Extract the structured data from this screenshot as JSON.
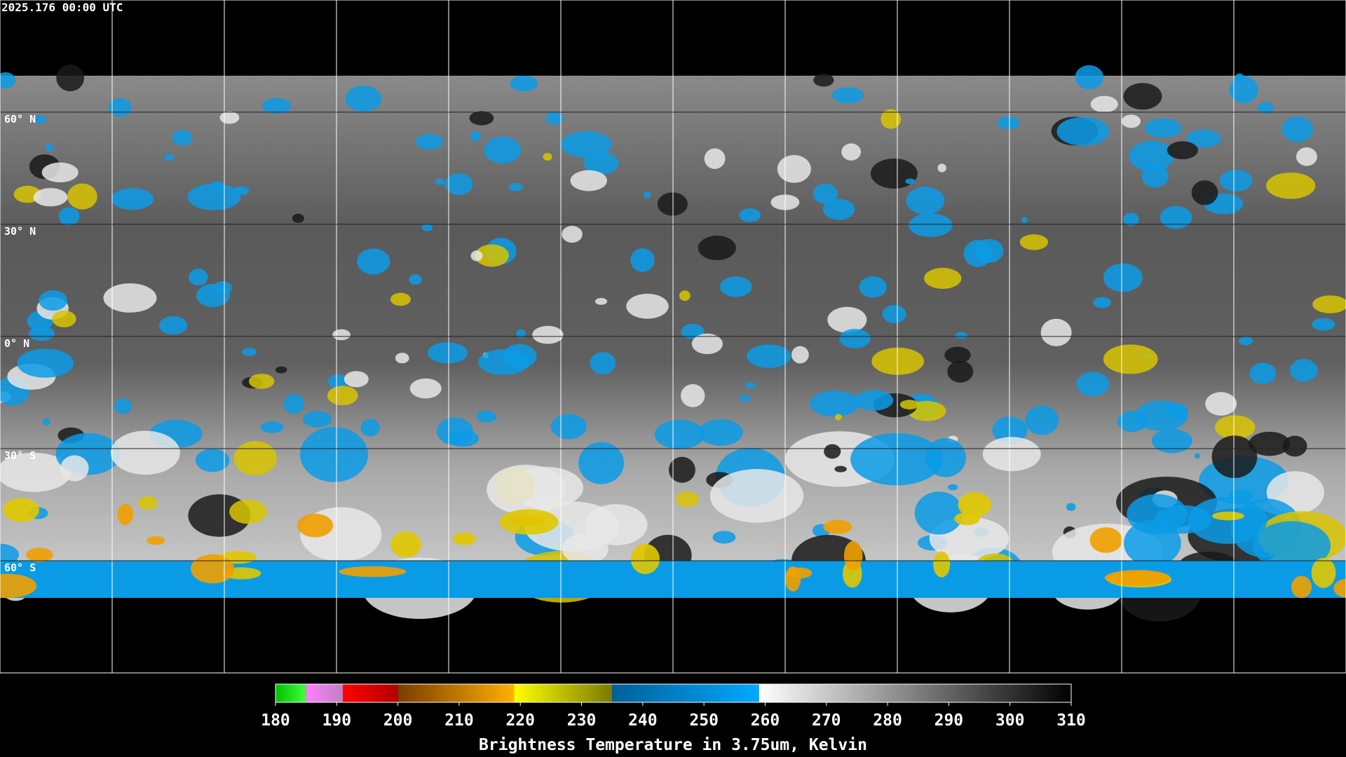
{
  "header": {
    "timestamp": "2025.176 00:00 UTC"
  },
  "map": {
    "lat_labels": [
      "60° N",
      "30° N",
      "0° N",
      "30° S",
      "60° S"
    ]
  },
  "colorbar": {
    "title": "Brightness Temperature in 3.75um, Kelvin",
    "lim": [
      180,
      310
    ],
    "ticks": [
      180,
      190,
      200,
      210,
      220,
      230,
      240,
      250,
      260,
      270,
      280,
      290,
      300,
      310
    ],
    "segments": [
      {
        "from": 180,
        "to": 185,
        "colors": [
          "#00c000",
          "#40ff40"
        ]
      },
      {
        "from": 185,
        "to": 191,
        "colors": [
          "#ff80ff",
          "#c080c0"
        ]
      },
      {
        "from": 191,
        "to": 200,
        "colors": [
          "#ff0000",
          "#b00000"
        ]
      },
      {
        "from": 200,
        "to": 219,
        "colors": [
          "#7a3c00",
          "#ffb000"
        ]
      },
      {
        "from": 219,
        "to": 235,
        "colors": [
          "#ffff00",
          "#7a7a00"
        ]
      },
      {
        "from": 235,
        "to": 259,
        "colors": [
          "#00609a",
          "#00a8ff"
        ]
      },
      {
        "from": 259,
        "to": 310,
        "colors": [
          "#ffffff",
          "#000000"
        ]
      }
    ]
  }
}
